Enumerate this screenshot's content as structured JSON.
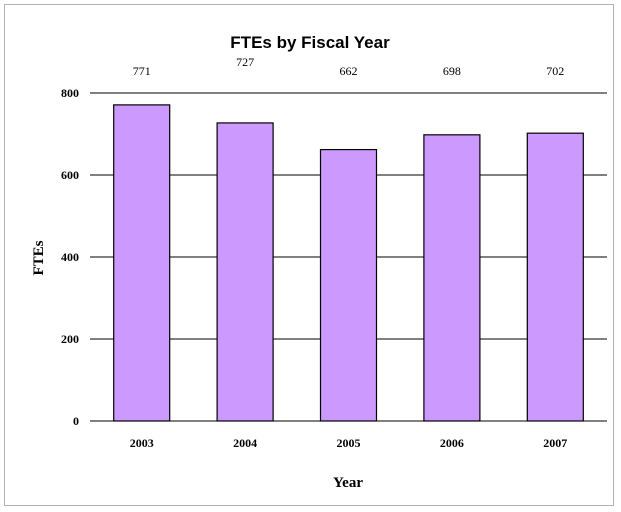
{
  "chart_data": {
    "type": "bar",
    "title": "FTEs by Fiscal Year",
    "xlabel": "Year",
    "ylabel": "FTEs",
    "categories": [
      "2003",
      "2004",
      "2005",
      "2006",
      "2007"
    ],
    "values": [
      771,
      727,
      662,
      698,
      702
    ],
    "data_labels": [
      "771",
      "727",
      "662",
      "698",
      "702"
    ],
    "ylim": [
      0,
      800
    ],
    "yticks": [
      0,
      200,
      400,
      600,
      800
    ],
    "ytick_labels": [
      "0",
      "200",
      "400",
      "600",
      "800"
    ],
    "grid": true,
    "legend": "none",
    "bar_color": "#cc99ff"
  }
}
